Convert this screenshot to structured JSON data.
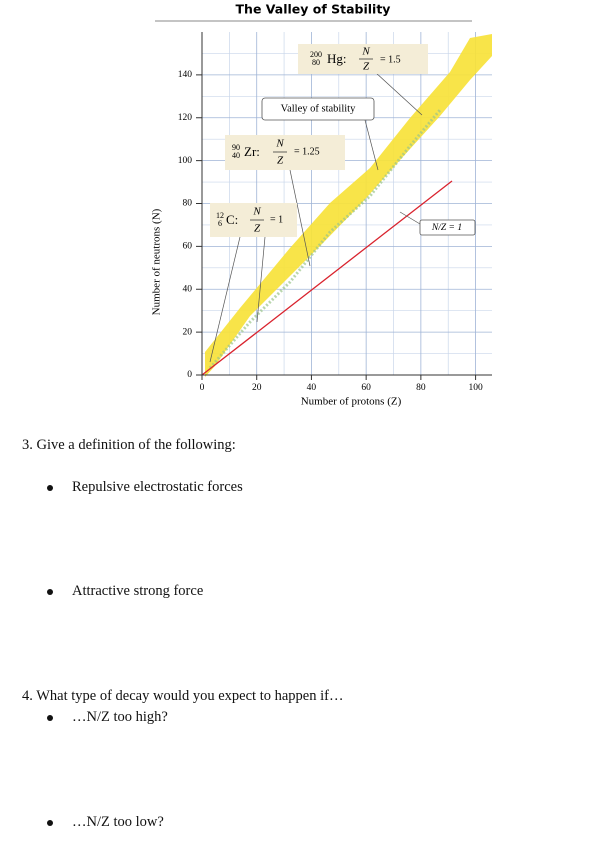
{
  "chart_data": {
    "type": "scatter",
    "title": "The Valley of Stability",
    "xlabel": "Number of protons (Z)",
    "ylabel": "Number of neutrons (N)",
    "xlim": [
      0,
      106
    ],
    "ylim": [
      0,
      160
    ],
    "xticks": [
      0,
      20,
      40,
      60,
      80,
      100
    ],
    "yticks": [
      0,
      20,
      40,
      60,
      80,
      100,
      120,
      140
    ],
    "grid": true
  },
  "annotations": [
    {
      "mass": "200",
      "atomic": "80",
      "symbol": "Hg:",
      "numerator": "N",
      "denominator": "Z",
      "ratio": "= 1.5"
    },
    {
      "text": "Valley of stability"
    },
    {
      "mass": "90",
      "atomic": "40",
      "symbol": "Zr:",
      "numerator": "N",
      "denominator": "Z",
      "ratio": "= 1.25"
    },
    {
      "mass": "12",
      "atomic": "6",
      "symbol": "C:",
      "numerator": "N",
      "denominator": "Z",
      "ratio": "= 1"
    },
    {
      "text": "N/Z = 1"
    }
  ],
  "document": {
    "questions": [
      {
        "text": "3.  Give a definition of the following:",
        "items": [
          "Repulsive electrostatic forces",
          "Attractive strong force"
        ]
      },
      {
        "text": "4.  What type of decay would you expect to happen if…",
        "items": [
          "…N/Z too high?",
          "…N/Z too low?"
        ]
      }
    ]
  }
}
